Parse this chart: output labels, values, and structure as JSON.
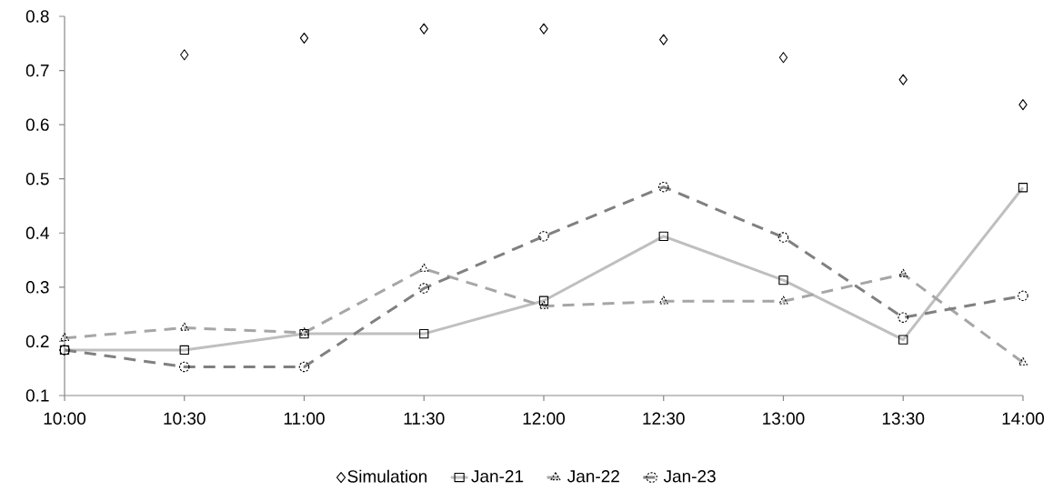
{
  "chart_data": {
    "type": "line",
    "x": [
      10,
      10.5,
      11,
      11.5,
      12,
      12.5,
      13,
      13.5,
      14
    ],
    "series": [
      {
        "name": "Simulation",
        "type": "scatter",
        "color": "#000000",
        "marker": "diamond",
        "values": [
          null,
          0.729,
          0.76,
          0.777,
          0.777,
          0.757,
          0.724,
          0.683,
          0.637
        ]
      },
      {
        "name": "Jan-21",
        "color": "#bfbfbf",
        "marker": "square",
        "line_style": "solid",
        "values": [
          0.184,
          0.184,
          0.214,
          0.214,
          0.275,
          0.394,
          0.313,
          0.203,
          0.484
        ]
      },
      {
        "name": "Jan-22",
        "color": "#a6a6a6",
        "marker": "triangle",
        "line_style": "dashed",
        "values": [
          0.206,
          0.225,
          0.216,
          0.334,
          0.265,
          0.274,
          0.274,
          0.324,
          0.161
        ]
      },
      {
        "name": "Jan-23",
        "color": "#808080",
        "marker": "circle",
        "line_style": "dashed",
        "values": [
          0.184,
          0.153,
          0.153,
          0.298,
          0.394,
          0.485,
          0.392,
          0.244,
          0.284
        ]
      }
    ],
    "xlim": [
      10,
      14
    ],
    "xticks": [
      {
        "value": 10,
        "label": "10:00"
      },
      {
        "value": 10.5,
        "label": "10:30"
      },
      {
        "value": 11,
        "label": "11:00"
      },
      {
        "value": 11.5,
        "label": "11:30"
      },
      {
        "value": 12,
        "label": "12:00"
      },
      {
        "value": 12.5,
        "label": "12:30"
      },
      {
        "value": 13,
        "label": "13:00"
      },
      {
        "value": 13.5,
        "label": "13:30"
      },
      {
        "value": 14,
        "label": "14:00"
      }
    ],
    "ylim": [
      0.1,
      0.8
    ],
    "yticks": [
      0.1,
      0.2,
      0.3,
      0.4,
      0.5,
      0.6,
      0.7,
      0.8
    ],
    "grid": false,
    "legend": "bottom"
  }
}
